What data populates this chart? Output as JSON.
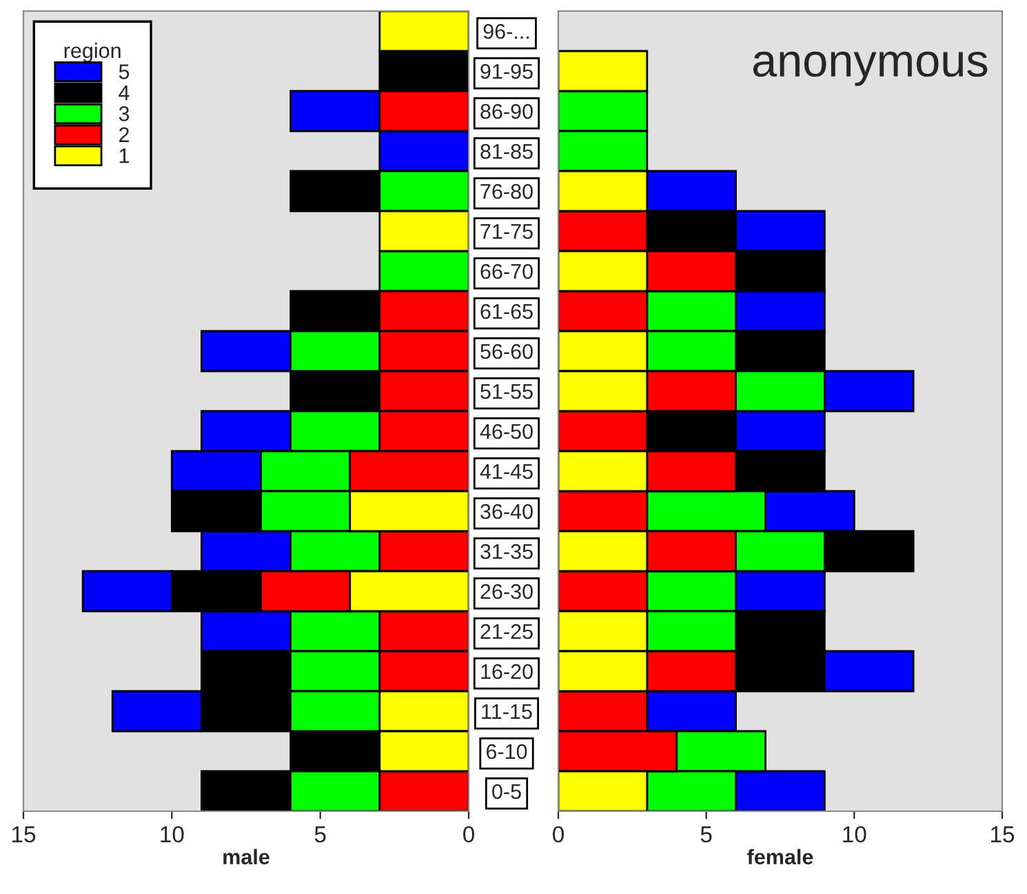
{
  "chart_data": [
    {
      "type": "bar",
      "orientation": "horizontal",
      "xlabel": "male",
      "legend": "top left",
      "legend_title": "region",
      "tick_labels": "x",
      "xlim": [
        15,
        0
      ],
      "xticks": [
        15,
        10,
        5,
        0
      ],
      "series": [
        {
          "name": "5",
          "color": "#0000ff",
          "values": [
            null,
            null,
            3,
            3,
            null,
            null,
            null,
            null,
            3,
            null,
            3,
            3,
            null,
            3,
            3,
            3,
            null,
            3,
            null,
            null
          ],
          "base": [
            null,
            null,
            3,
            0,
            null,
            null,
            null,
            null,
            6,
            null,
            6,
            7,
            null,
            6,
            10,
            6,
            null,
            9,
            null,
            null
          ]
        },
        {
          "name": "4",
          "color": "#000000",
          "values": [
            null,
            3,
            null,
            null,
            3,
            null,
            null,
            3,
            null,
            3,
            null,
            null,
            3,
            null,
            3,
            null,
            3,
            3,
            3,
            3
          ],
          "base": [
            null,
            0,
            null,
            null,
            3,
            null,
            null,
            3,
            null,
            3,
            null,
            null,
            7,
            null,
            7,
            null,
            6,
            6,
            3,
            6
          ]
        },
        {
          "name": "3",
          "color": "#00ff00",
          "values": [
            null,
            null,
            null,
            null,
            3,
            null,
            3,
            null,
            3,
            null,
            3,
            3,
            3,
            3,
            null,
            3,
            3,
            3,
            null,
            3
          ],
          "base": [
            null,
            null,
            null,
            null,
            0,
            null,
            0,
            null,
            3,
            null,
            3,
            4,
            4,
            3,
            null,
            3,
            3,
            3,
            null,
            3
          ]
        },
        {
          "name": "2",
          "color": "#ff0000",
          "values": [
            null,
            null,
            3,
            null,
            null,
            null,
            null,
            3,
            3,
            3,
            3,
            4,
            null,
            3,
            3,
            3,
            3,
            null,
            null,
            3
          ],
          "base": [
            null,
            null,
            0,
            null,
            null,
            null,
            null,
            0,
            0,
            0,
            0,
            0,
            null,
            0,
            4,
            0,
            0,
            null,
            null,
            0
          ]
        },
        {
          "name": "1",
          "color": "#ffff00",
          "values": [
            3,
            null,
            null,
            null,
            null,
            3,
            null,
            null,
            null,
            null,
            null,
            null,
            4,
            null,
            4,
            null,
            null,
            3,
            3,
            null
          ],
          "base": [
            0,
            null,
            null,
            null,
            null,
            0,
            null,
            null,
            null,
            null,
            null,
            null,
            0,
            null,
            0,
            null,
            null,
            0,
            0,
            null
          ]
        }
      ]
    },
    {
      "type": "bar",
      "orientation": "horizontal",
      "xlabel": "female",
      "xlim": [
        0,
        15
      ],
      "xticks": [
        0,
        5,
        10,
        15
      ],
      "annotations": [
        "anonymous"
      ],
      "categories": [
        "96-...",
        "91-95",
        "86-90",
        "81-85",
        "76-80",
        "71-75",
        "66-70",
        "61-65",
        "56-60",
        "51-55",
        "46-50",
        "41-45",
        "36-40",
        "31-35",
        "26-30",
        "21-25",
        "16-20",
        "11-15",
        "6-10",
        "0-5"
      ],
      "series": [
        {
          "color": "#0000ff",
          "values": [
            null,
            null,
            null,
            null,
            3,
            3,
            null,
            3,
            null,
            3,
            3,
            null,
            3,
            null,
            3,
            null,
            3,
            3,
            null,
            3
          ],
          "base": [
            null,
            null,
            null,
            null,
            3,
            6,
            null,
            6,
            null,
            9,
            6,
            null,
            7,
            null,
            6,
            null,
            9,
            3,
            null,
            6
          ]
        },
        {
          "color": "#000000",
          "values": [
            null,
            null,
            null,
            null,
            null,
            3,
            3,
            null,
            3,
            null,
            3,
            3,
            null,
            3,
            null,
            3,
            3,
            null,
            null,
            null
          ],
          "base": [
            null,
            null,
            null,
            null,
            null,
            3,
            6,
            null,
            6,
            null,
            3,
            6,
            null,
            9,
            null,
            6,
            6,
            null,
            null,
            null
          ]
        },
        {
          "color": "#00ff00",
          "values": [
            null,
            null,
            3,
            3,
            null,
            null,
            null,
            3,
            3,
            3,
            null,
            null,
            4,
            3,
            3,
            3,
            null,
            null,
            3,
            3
          ],
          "base": [
            null,
            null,
            0,
            0,
            null,
            null,
            null,
            3,
            3,
            6,
            null,
            null,
            3,
            6,
            3,
            3,
            null,
            null,
            4,
            3
          ]
        },
        {
          "color": "#ff0000",
          "values": [
            null,
            null,
            null,
            null,
            null,
            3,
            3,
            3,
            null,
            3,
            3,
            3,
            3,
            3,
            3,
            null,
            3,
            3,
            4,
            null
          ],
          "base": [
            null,
            null,
            null,
            null,
            null,
            0,
            3,
            0,
            null,
            3,
            0,
            3,
            0,
            3,
            0,
            null,
            3,
            0,
            0,
            null
          ]
        },
        {
          "color": "#ffff00",
          "values": [
            null,
            3,
            null,
            null,
            3,
            null,
            3,
            null,
            3,
            3,
            null,
            3,
            null,
            3,
            null,
            3,
            3,
            null,
            null,
            3
          ],
          "base": [
            null,
            0,
            null,
            null,
            0,
            null,
            0,
            null,
            0,
            0,
            null,
            0,
            null,
            0,
            null,
            0,
            0,
            null,
            null,
            0
          ]
        }
      ]
    }
  ]
}
